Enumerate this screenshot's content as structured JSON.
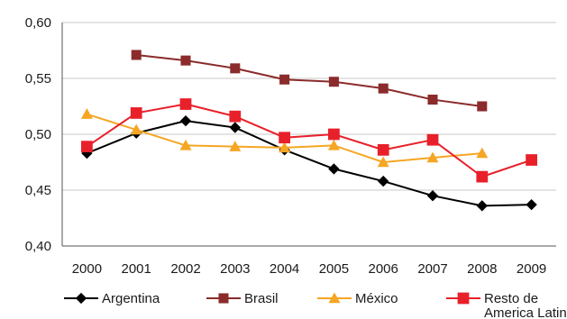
{
  "chart_data": {
    "type": "line",
    "title": "",
    "xlabel": "",
    "ylabel": "",
    "x": [
      "2000",
      "2001",
      "2002",
      "2003",
      "2004",
      "2005",
      "2006",
      "2007",
      "2008",
      "2009"
    ],
    "ylim": [
      0.4,
      0.6
    ],
    "yticks": [
      "0,40",
      "0,45",
      "0,50",
      "0,55",
      "0,60"
    ],
    "ytick_values": [
      0.4,
      0.45,
      0.5,
      0.55,
      0.6
    ],
    "grid": "horizontal",
    "legend_position": "bottom",
    "series": [
      {
        "name": "Argentina",
        "color": "#000000",
        "marker": "diamond",
        "values": [
          0.483,
          0.501,
          0.512,
          0.506,
          0.486,
          0.469,
          0.458,
          0.445,
          0.436,
          0.437
        ]
      },
      {
        "name": "Brasil",
        "color": "#8b2b2b",
        "marker": "square",
        "values": [
          null,
          0.571,
          0.566,
          0.559,
          0.549,
          0.547,
          0.541,
          0.531,
          0.525,
          null
        ]
      },
      {
        "name": "México",
        "color": "#f5a623",
        "marker": "triangle",
        "values": [
          0.518,
          0.504,
          0.49,
          0.489,
          0.488,
          0.49,
          0.475,
          0.479,
          0.483,
          null
        ]
      },
      {
        "name": "Resto de America Latina",
        "label_lines": [
          "Resto de",
          "America Latina"
        ],
        "color": "#e8202a",
        "marker": "square",
        "values": [
          0.489,
          0.519,
          0.527,
          0.516,
          0.497,
          0.5,
          0.486,
          0.495,
          0.462,
          0.477
        ]
      }
    ]
  }
}
